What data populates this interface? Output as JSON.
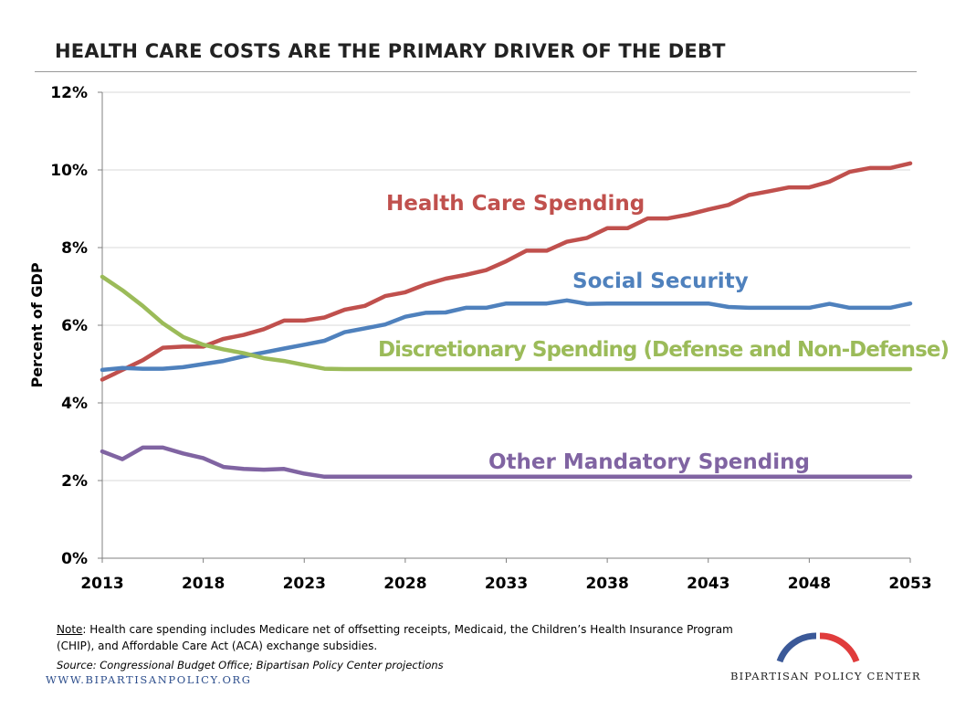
{
  "title": "HEALTH CARE COSTS ARE THE PRIMARY DRIVER OF THE DEBT",
  "chart_data": {
    "type": "line",
    "ylabel": "Percent of GDP",
    "xlabel": "",
    "ylim": [
      0,
      12
    ],
    "xlim": [
      2013,
      2053
    ],
    "y_ticks": [
      "0%",
      "2%",
      "4%",
      "6%",
      "8%",
      "10%",
      "12%"
    ],
    "x_ticks": [
      "2013",
      "2018",
      "2023",
      "2028",
      "2033",
      "2038",
      "2043",
      "2048",
      "2053"
    ],
    "grid": "horizontal",
    "x": [
      2013,
      2014,
      2015,
      2016,
      2017,
      2018,
      2019,
      2020,
      2021,
      2022,
      2023,
      2024,
      2025,
      2026,
      2027,
      2028,
      2029,
      2030,
      2031,
      2032,
      2033,
      2034,
      2035,
      2036,
      2037,
      2038,
      2039,
      2040,
      2041,
      2042,
      2043,
      2044,
      2045,
      2046,
      2047,
      2048,
      2049,
      2050,
      2051,
      2052,
      2053
    ],
    "series": [
      {
        "name": "Health Care Spending",
        "color": "#c0504d",
        "values": [
          4.6,
          4.85,
          5.1,
          5.42,
          5.45,
          5.45,
          5.65,
          5.75,
          5.9,
          6.12,
          6.12,
          6.2,
          6.4,
          6.5,
          6.75,
          6.85,
          7.05,
          7.2,
          7.3,
          7.42,
          7.65,
          7.92,
          7.92,
          8.15,
          8.25,
          8.5,
          8.5,
          8.75,
          8.75,
          8.85,
          8.98,
          9.1,
          9.35,
          9.45,
          9.55,
          9.55,
          9.7,
          9.95,
          10.05,
          10.05,
          10.17
        ]
      },
      {
        "name": "Social Security",
        "color": "#4f81bd",
        "values": [
          4.85,
          4.9,
          4.88,
          4.88,
          4.92,
          5.0,
          5.08,
          5.2,
          5.3,
          5.4,
          5.5,
          5.6,
          5.82,
          5.92,
          6.02,
          6.22,
          6.32,
          6.33,
          6.45,
          6.45,
          6.56,
          6.56,
          6.56,
          6.64,
          6.55,
          6.56,
          6.56,
          6.56,
          6.56,
          6.56,
          6.56,
          6.47,
          6.45,
          6.45,
          6.45,
          6.45,
          6.55,
          6.45,
          6.45,
          6.45,
          6.56
        ]
      },
      {
        "name": "Discretionary Spending (Defense and Non-Defense)",
        "color": "#9bbb59",
        "values": [
          7.25,
          6.9,
          6.5,
          6.05,
          5.7,
          5.5,
          5.38,
          5.28,
          5.15,
          5.08,
          4.98,
          4.88,
          4.87,
          4.87,
          4.87,
          4.87,
          4.87,
          4.87,
          4.87,
          4.87,
          4.87,
          4.87,
          4.87,
          4.87,
          4.87,
          4.87,
          4.87,
          4.87,
          4.87,
          4.87,
          4.87,
          4.87,
          4.87,
          4.87,
          4.87,
          4.87,
          4.87,
          4.87,
          4.87,
          4.87,
          4.87
        ]
      },
      {
        "name": "Other Mandatory Spending",
        "color": "#8064a2",
        "values": [
          2.75,
          2.55,
          2.85,
          2.85,
          2.7,
          2.58,
          2.35,
          2.3,
          2.28,
          2.3,
          2.18,
          2.1,
          2.1,
          2.1,
          2.1,
          2.1,
          2.1,
          2.1,
          2.1,
          2.1,
          2.1,
          2.1,
          2.1,
          2.1,
          2.1,
          2.1,
          2.1,
          2.1,
          2.1,
          2.1,
          2.1,
          2.1,
          2.1,
          2.1,
          2.1,
          2.1,
          2.1,
          2.1,
          2.1,
          2.1,
          2.1
        ]
      }
    ]
  },
  "footer": {
    "note_label": "Note",
    "note_text": ": Health care spending includes Medicare net of offsetting receipts, Medicaid, the Children’s Health Insurance Program (CHIP), and Affordable Care Act (ACA) exchange subsidies.",
    "source": "Source: Congressional Budget Office; Bipartisan Policy Center projections",
    "website": "WWW.BIPARTISANPOLICY.ORG",
    "org_name": "BIPARTISAN POLICY CENTER",
    "logo_colors": {
      "left": "#3b5998",
      "right": "#e03c3c"
    }
  }
}
